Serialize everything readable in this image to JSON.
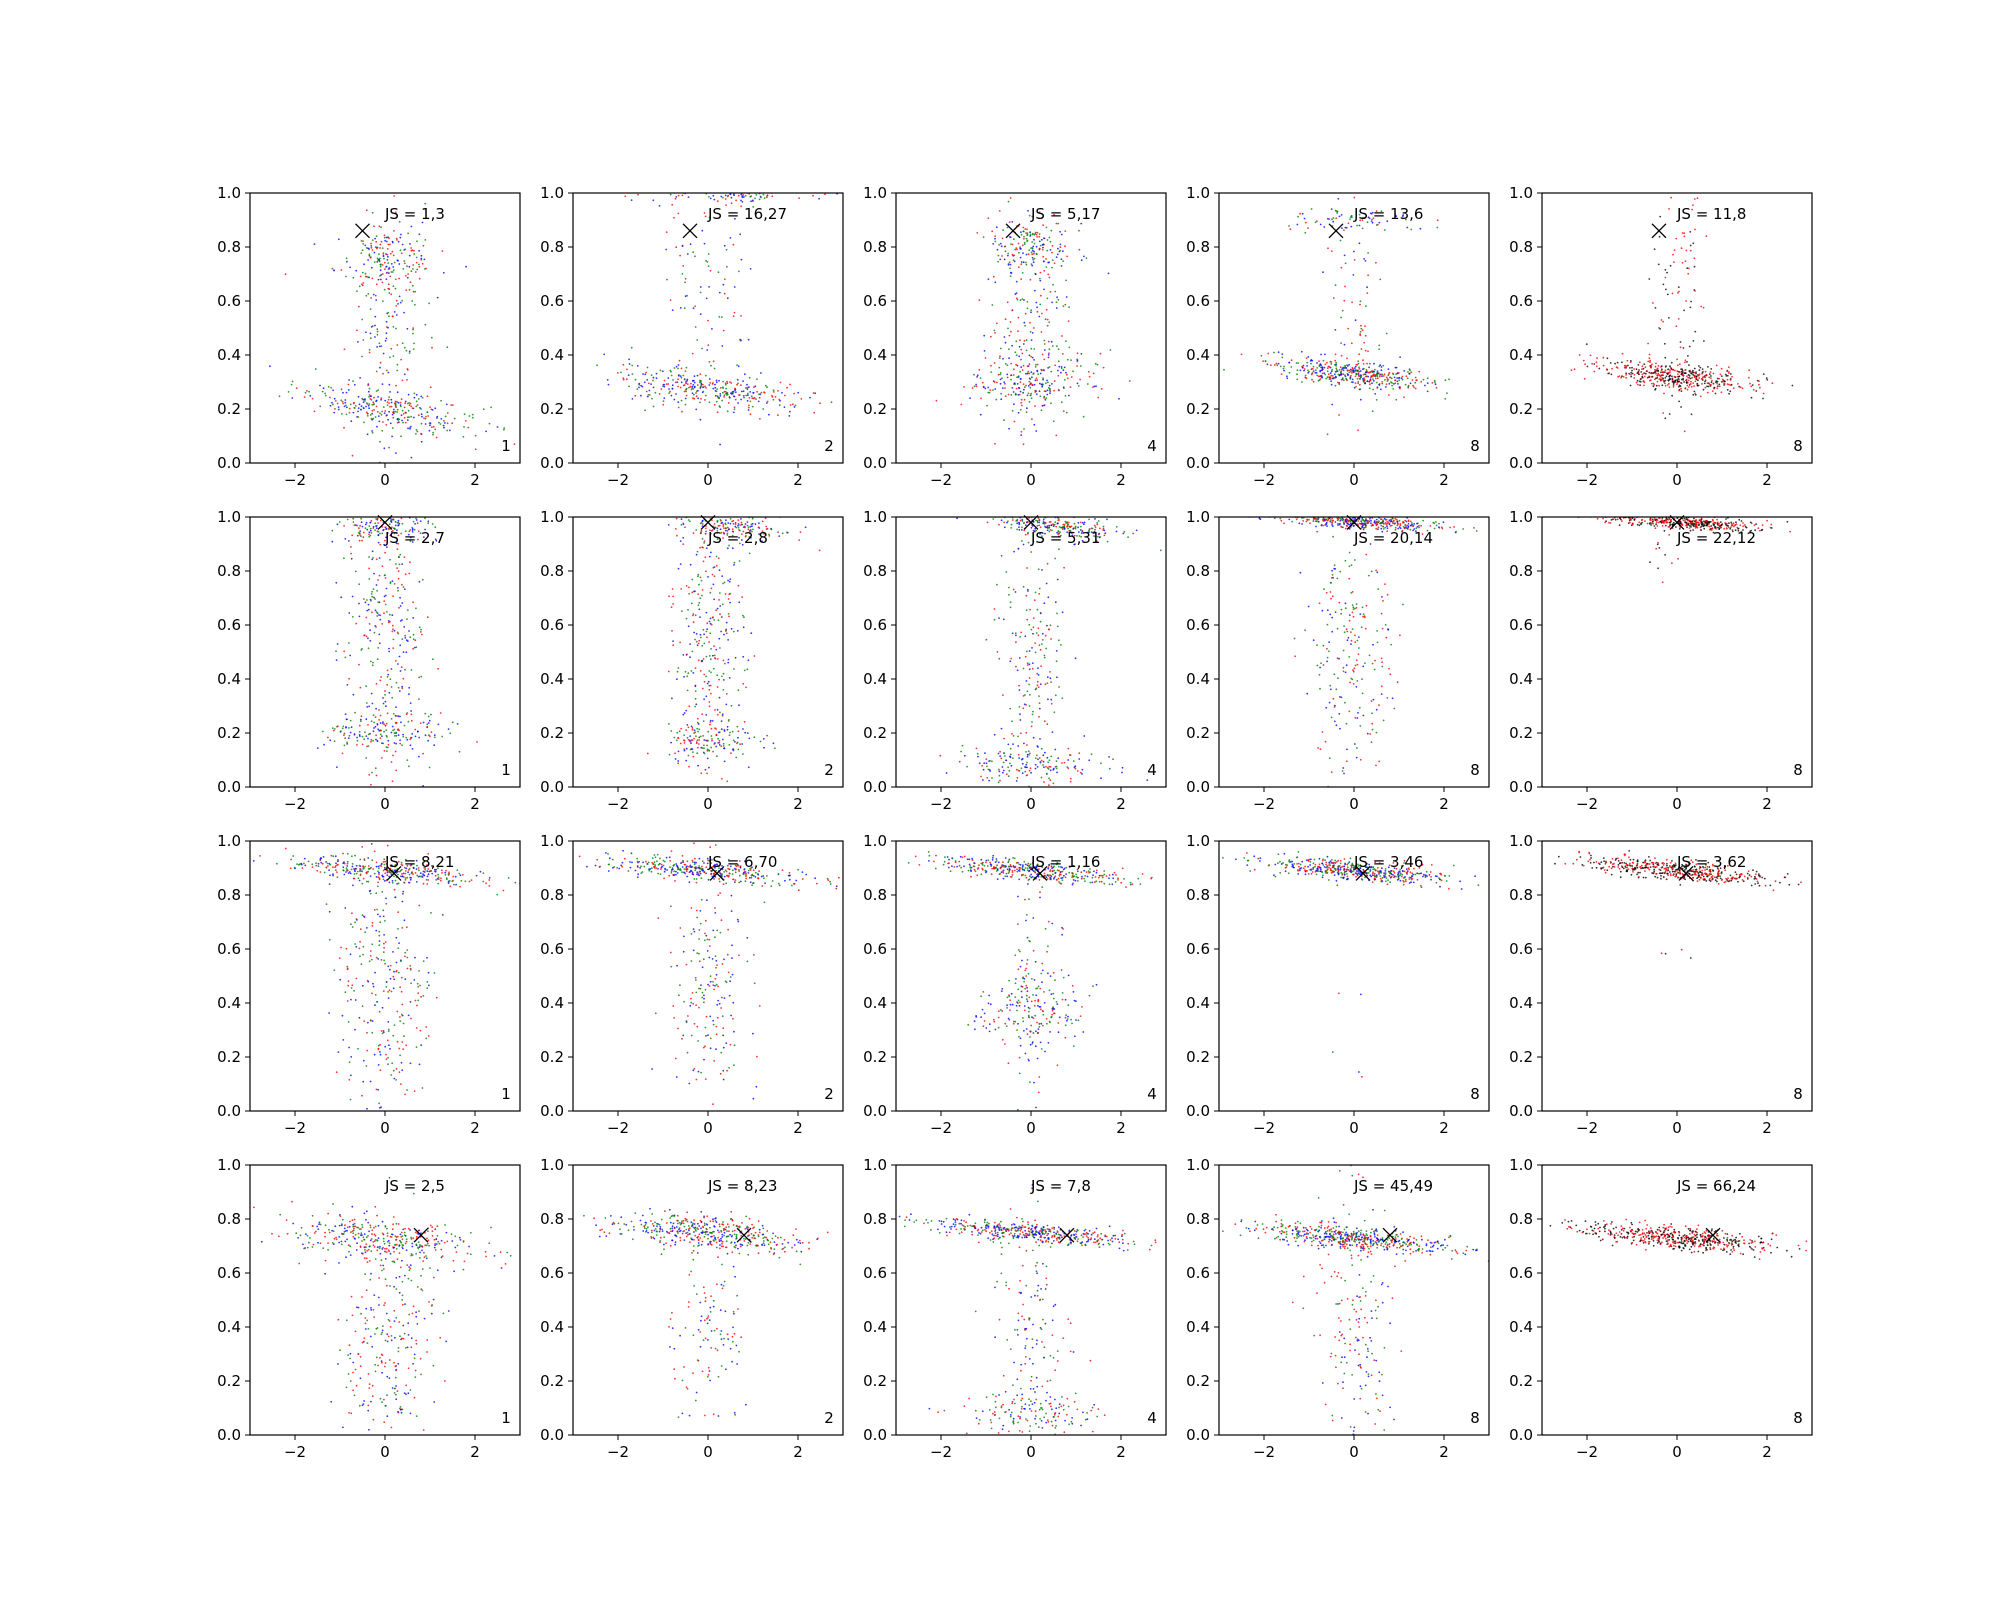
{
  "figure": {
    "rows": 4,
    "cols": 5,
    "xlim": [
      -3,
      3
    ],
    "ylim": [
      0,
      1
    ],
    "xticks": [
      -2,
      0,
      2
    ],
    "xtick_labels": [
      "−2",
      "0",
      "2"
    ],
    "yticks": [
      0.0,
      0.2,
      0.4,
      0.6,
      0.8,
      1.0
    ],
    "ytick_labels": [
      "0.0",
      "0.2",
      "0.4",
      "0.6",
      "0.8",
      "1.0"
    ],
    "series_colors": {
      "black": "#000000",
      "blue": "#0000ff",
      "green": "#008000",
      "red": "#ff0000"
    },
    "marker": "x"
  },
  "chart_data": [
    {
      "type": "scatter",
      "row": 0,
      "col": 0,
      "annotation": "JS = 1,3",
      "corner_label": "1",
      "marker_xy": [
        -0.5,
        0.86
      ],
      "series_colors": [
        "blue",
        "green",
        "red"
      ],
      "clusters": [
        {
          "cx": 0,
          "cy": 0.2,
          "sx": 1.0,
          "sy": 0.04,
          "slope": -0.03,
          "n": 280
        },
        {
          "cx": 0,
          "cy": 0.75,
          "sx": 0.55,
          "sy": 0.06,
          "slope": 0,
          "n": 160
        },
        {
          "cx": 0,
          "cy": 0.5,
          "sx": 0.5,
          "sy": 0.25,
          "slope": 0,
          "n": 180
        }
      ]
    },
    {
      "type": "scatter",
      "row": 0,
      "col": 1,
      "annotation": "JS = 16,27",
      "corner_label": "2",
      "marker_xy": [
        -0.4,
        0.86
      ],
      "series_colors": [
        "blue",
        "green",
        "red"
      ],
      "clusters": [
        {
          "cx": 0,
          "cy": 0.27,
          "sx": 1.1,
          "sy": 0.035,
          "slope": -0.02,
          "n": 320
        },
        {
          "cx": 0.8,
          "cy": 1.0,
          "sx": 1.0,
          "sy": 0.02,
          "slope": 0,
          "n": 120
        },
        {
          "cx": 0,
          "cy": 0.6,
          "sx": 0.5,
          "sy": 0.2,
          "slope": 0,
          "n": 100
        }
      ]
    },
    {
      "type": "scatter",
      "row": 0,
      "col": 2,
      "annotation": "JS = 5,17",
      "corner_label": "4",
      "marker_xy": [
        -0.4,
        0.86
      ],
      "series_colors": [
        "blue",
        "green",
        "red"
      ],
      "clusters": [
        {
          "cx": 0,
          "cy": 0.3,
          "sx": 0.7,
          "sy": 0.06,
          "slope": 0,
          "n": 220
        },
        {
          "cx": 0,
          "cy": 0.8,
          "sx": 0.45,
          "sy": 0.05,
          "slope": 0,
          "n": 150
        },
        {
          "cx": 0,
          "cy": 0.5,
          "sx": 0.45,
          "sy": 0.25,
          "slope": 0,
          "n": 220
        }
      ]
    },
    {
      "type": "scatter",
      "row": 0,
      "col": 3,
      "annotation": "JS = 13,6",
      "corner_label": "8",
      "marker_xy": [
        -0.4,
        0.86
      ],
      "series_colors": [
        "green",
        "blue",
        "red"
      ],
      "clusters": [
        {
          "cx": 0,
          "cy": 0.33,
          "sx": 0.85,
          "sy": 0.025,
          "slope": -0.02,
          "n": 420
        },
        {
          "cx": 0,
          "cy": 0.9,
          "sx": 0.8,
          "sy": 0.02,
          "slope": 0,
          "n": 70
        },
        {
          "cx": 0,
          "cy": 0.55,
          "sx": 0.35,
          "sy": 0.25,
          "slope": 0,
          "n": 80
        }
      ]
    },
    {
      "type": "scatter",
      "row": 0,
      "col": 4,
      "annotation": "JS = 11,8",
      "corner_label": "8",
      "marker_xy": [
        -0.4,
        0.86
      ],
      "series_colors": [
        "black",
        "red"
      ],
      "clusters": [
        {
          "cx": 0,
          "cy": 0.32,
          "sx": 0.85,
          "sy": 0.025,
          "slope": -0.02,
          "n": 460
        },
        {
          "cx": 0,
          "cy": 0.6,
          "sx": 0.3,
          "sy": 0.2,
          "slope": 0,
          "n": 90
        }
      ]
    },
    {
      "type": "scatter",
      "row": 1,
      "col": 0,
      "annotation": "JS = 2,7",
      "corner_label": "1",
      "marker_xy": [
        0.0,
        0.98
      ],
      "series_colors": [
        "blue",
        "green",
        "red"
      ],
      "clusters": [
        {
          "cx": 0,
          "cy": 0.97,
          "sx": 0.5,
          "sy": 0.03,
          "slope": 0,
          "n": 130
        },
        {
          "cx": 0,
          "cy": 0.2,
          "sx": 0.7,
          "sy": 0.04,
          "slope": 0,
          "n": 150
        },
        {
          "cx": 0,
          "cy": 0.55,
          "sx": 0.45,
          "sy": 0.27,
          "slope": 0,
          "n": 320
        }
      ]
    },
    {
      "type": "scatter",
      "row": 1,
      "col": 1,
      "annotation": "JS = 2,8",
      "corner_label": "2",
      "marker_xy": [
        0.0,
        0.98
      ],
      "series_colors": [
        "blue",
        "green",
        "red"
      ],
      "clusters": [
        {
          "cx": 0.5,
          "cy": 0.97,
          "sx": 0.7,
          "sy": 0.025,
          "slope": -0.02,
          "n": 170
        },
        {
          "cx": 0,
          "cy": 0.17,
          "sx": 0.5,
          "sy": 0.04,
          "slope": 0,
          "n": 140
        },
        {
          "cx": 0,
          "cy": 0.55,
          "sx": 0.4,
          "sy": 0.25,
          "slope": 0,
          "n": 300
        }
      ]
    },
    {
      "type": "scatter",
      "row": 1,
      "col": 2,
      "annotation": "JS = 5,31",
      "corner_label": "4",
      "marker_xy": [
        0.0,
        0.98
      ],
      "series_colors": [
        "blue",
        "green",
        "red"
      ],
      "clusters": [
        {
          "cx": 0.5,
          "cy": 0.97,
          "sx": 0.75,
          "sy": 0.02,
          "slope": -0.02,
          "n": 250
        },
        {
          "cx": 0,
          "cy": 0.08,
          "sx": 0.9,
          "sy": 0.04,
          "slope": 0,
          "n": 160
        },
        {
          "cx": 0,
          "cy": 0.5,
          "sx": 0.35,
          "sy": 0.27,
          "slope": 0,
          "n": 200
        }
      ]
    },
    {
      "type": "scatter",
      "row": 1,
      "col": 3,
      "annotation": "JS = 20,14",
      "corner_label": "8",
      "marker_xy": [
        0.0,
        0.98
      ],
      "series_colors": [
        "red",
        "blue",
        "green"
      ],
      "clusters": [
        {
          "cx": 0.2,
          "cy": 0.98,
          "sx": 0.9,
          "sy": 0.012,
          "slope": -0.01,
          "n": 380
        },
        {
          "cx": 0,
          "cy": 0.5,
          "sx": 0.45,
          "sy": 0.27,
          "slope": 0,
          "n": 230
        }
      ]
    },
    {
      "type": "scatter",
      "row": 1,
      "col": 4,
      "annotation": "JS = 22,12",
      "corner_label": "8",
      "marker_xy": [
        0.0,
        0.98
      ],
      "series_colors": [
        "black",
        "red"
      ],
      "clusters": [
        {
          "cx": 0.2,
          "cy": 0.98,
          "sx": 0.9,
          "sy": 0.012,
          "slope": -0.01,
          "n": 420
        },
        {
          "cx": -0.3,
          "cy": 0.85,
          "sx": 0.2,
          "sy": 0.06,
          "slope": 0,
          "n": 12
        }
      ]
    },
    {
      "type": "scatter",
      "row": 2,
      "col": 0,
      "annotation": "JS = 8,21",
      "corner_label": "1",
      "marker_xy": [
        0.2,
        0.88
      ],
      "series_colors": [
        "blue",
        "green",
        "red"
      ],
      "clusters": [
        {
          "cx": 0,
          "cy": 0.89,
          "sx": 1.1,
          "sy": 0.02,
          "slope": -0.015,
          "n": 340
        },
        {
          "cx": 0,
          "cy": 0.45,
          "sx": 0.55,
          "sy": 0.25,
          "slope": 0,
          "n": 300
        }
      ]
    },
    {
      "type": "scatter",
      "row": 2,
      "col": 1,
      "annotation": "JS = 6,70",
      "corner_label": "2",
      "marker_xy": [
        0.2,
        0.88
      ],
      "series_colors": [
        "blue",
        "green",
        "red"
      ],
      "clusters": [
        {
          "cx": 0,
          "cy": 0.89,
          "sx": 1.05,
          "sy": 0.02,
          "slope": -0.015,
          "n": 360
        },
        {
          "cx": 0,
          "cy": 0.45,
          "sx": 0.45,
          "sy": 0.25,
          "slope": 0,
          "n": 200
        }
      ]
    },
    {
      "type": "scatter",
      "row": 2,
      "col": 2,
      "annotation": "JS = 1,16",
      "corner_label": "4",
      "marker_xy": [
        0.2,
        0.88
      ],
      "series_colors": [
        "blue",
        "red",
        "green"
      ],
      "clusters": [
        {
          "cx": 0,
          "cy": 0.89,
          "sx": 1.0,
          "sy": 0.018,
          "slope": -0.015,
          "n": 380
        },
        {
          "cx": 0,
          "cy": 0.37,
          "sx": 0.6,
          "sy": 0.06,
          "slope": 0,
          "n": 160
        },
        {
          "cx": 0,
          "cy": 0.4,
          "sx": 0.35,
          "sy": 0.23,
          "slope": 0,
          "n": 100
        }
      ]
    },
    {
      "type": "scatter",
      "row": 2,
      "col": 3,
      "annotation": "JS = 3,46",
      "corner_label": "8",
      "marker_xy": [
        0.2,
        0.88
      ],
      "series_colors": [
        "green",
        "blue",
        "red"
      ],
      "clusters": [
        {
          "cx": 0,
          "cy": 0.89,
          "sx": 1.1,
          "sy": 0.018,
          "slope": -0.015,
          "n": 480
        },
        {
          "cx": 0,
          "cy": 0.3,
          "sx": 0.5,
          "sy": 0.2,
          "slope": 0,
          "n": 6
        }
      ]
    },
    {
      "type": "scatter",
      "row": 2,
      "col": 4,
      "annotation": "JS = 3,62",
      "corner_label": "8",
      "marker_xy": [
        0.2,
        0.88
      ],
      "series_colors": [
        "black",
        "red"
      ],
      "clusters": [
        {
          "cx": 0,
          "cy": 0.89,
          "sx": 1.05,
          "sy": 0.018,
          "slope": -0.015,
          "n": 480
        },
        {
          "cx": 0,
          "cy": 0.58,
          "sx": 0.2,
          "sy": 0.01,
          "slope": 0,
          "n": 4
        }
      ]
    },
    {
      "type": "scatter",
      "row": 3,
      "col": 0,
      "annotation": "JS = 2,5",
      "corner_label": "1",
      "marker_xy": [
        0.8,
        0.74
      ],
      "series_colors": [
        "blue",
        "green",
        "red"
      ],
      "clusters": [
        {
          "cx": 0,
          "cy": 0.72,
          "sx": 1.0,
          "sy": 0.04,
          "slope": -0.015,
          "n": 340
        },
        {
          "cx": 0,
          "cy": 0.35,
          "sx": 0.55,
          "sy": 0.22,
          "slope": 0,
          "n": 260
        }
      ]
    },
    {
      "type": "scatter",
      "row": 3,
      "col": 1,
      "annotation": "JS = 8,23",
      "corner_label": "2",
      "marker_xy": [
        0.8,
        0.74
      ],
      "series_colors": [
        "blue",
        "green",
        "red"
      ],
      "clusters": [
        {
          "cx": 0,
          "cy": 0.75,
          "sx": 1.1,
          "sy": 0.03,
          "slope": -0.015,
          "n": 420
        },
        {
          "cx": 0,
          "cy": 0.35,
          "sx": 0.4,
          "sy": 0.2,
          "slope": 0,
          "n": 120
        }
      ]
    },
    {
      "type": "scatter",
      "row": 3,
      "col": 2,
      "annotation": "JS = 7,8",
      "corner_label": "4",
      "marker_xy": [
        0.8,
        0.74
      ],
      "series_colors": [
        "blue",
        "red",
        "green"
      ],
      "clusters": [
        {
          "cx": 0,
          "cy": 0.75,
          "sx": 1.1,
          "sy": 0.018,
          "slope": -0.015,
          "n": 420
        },
        {
          "cx": 0,
          "cy": 0.08,
          "sx": 0.8,
          "sy": 0.04,
          "slope": 0,
          "n": 130
        },
        {
          "cx": 0,
          "cy": 0.4,
          "sx": 0.4,
          "sy": 0.22,
          "slope": 0,
          "n": 140
        }
      ]
    },
    {
      "type": "scatter",
      "row": 3,
      "col": 3,
      "annotation": "JS = 45,49",
      "corner_label": "8",
      "marker_xy": [
        0.8,
        0.74
      ],
      "series_colors": [
        "green",
        "blue",
        "red"
      ],
      "clusters": [
        {
          "cx": 0,
          "cy": 0.73,
          "sx": 1.1,
          "sy": 0.02,
          "slope": -0.015,
          "n": 500
        },
        {
          "cx": 0,
          "cy": 0.4,
          "sx": 0.45,
          "sy": 0.25,
          "slope": 0,
          "n": 180
        }
      ]
    },
    {
      "type": "scatter",
      "row": 3,
      "col": 4,
      "annotation": "JS = 66,24",
      "corner_label": "8",
      "marker_xy": [
        0.8,
        0.74
      ],
      "series_colors": [
        "black",
        "red"
      ],
      "clusters": [
        {
          "cx": 0,
          "cy": 0.73,
          "sx": 1.1,
          "sy": 0.02,
          "slope": -0.015,
          "n": 520
        }
      ]
    }
  ]
}
